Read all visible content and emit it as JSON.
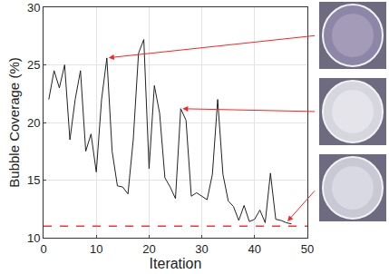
{
  "chart_data": {
    "type": "line",
    "x_label": "Iteration",
    "y_label": "Bubble Coverage (%)",
    "x": [
      1,
      2,
      3,
      4,
      5,
      6,
      7,
      8,
      9,
      10,
      11,
      12,
      13,
      14,
      15,
      16,
      17,
      18,
      19,
      20,
      21,
      22,
      23,
      24,
      25,
      26,
      27,
      28,
      29,
      30,
      31,
      32,
      33,
      34,
      35,
      36,
      37,
      38,
      39,
      40,
      41,
      42,
      43,
      44,
      45,
      46,
      47
    ],
    "series": [
      {
        "color": "#222222",
        "line_style": "solid",
        "values": [
          22,
          24.5,
          23,
          25,
          18.5,
          22,
          24.5,
          17.5,
          19,
          15.7,
          22,
          25.6,
          17.5,
          14.5,
          14.4,
          13.8,
          18.5,
          26,
          27.2,
          16,
          23.2,
          20.8,
          15.2,
          14.4,
          13.4,
          21.2,
          20.2,
          13.6,
          13.9,
          13.6,
          13.3,
          15.5,
          22,
          15.5,
          13.2,
          12.7,
          11.5,
          12.8,
          11.4,
          11.6,
          12.4,
          11.3,
          15.6,
          11.6,
          11.5,
          11.3,
          11.2
        ]
      },
      {
        "color": "#ff3333",
        "line_style": "dashed",
        "x": [
          0,
          50
        ],
        "values": [
          11,
          11
        ]
      }
    ],
    "photo_points": [
      12,
      26,
      46
    ],
    "xlim": [
      0,
      50
    ],
    "xticks": [
      0,
      10,
      20,
      30,
      40,
      50
    ],
    "ylim": [
      10,
      30
    ],
    "yticks": [
      10,
      15,
      20,
      25,
      30
    ],
    "grid": true
  }
}
